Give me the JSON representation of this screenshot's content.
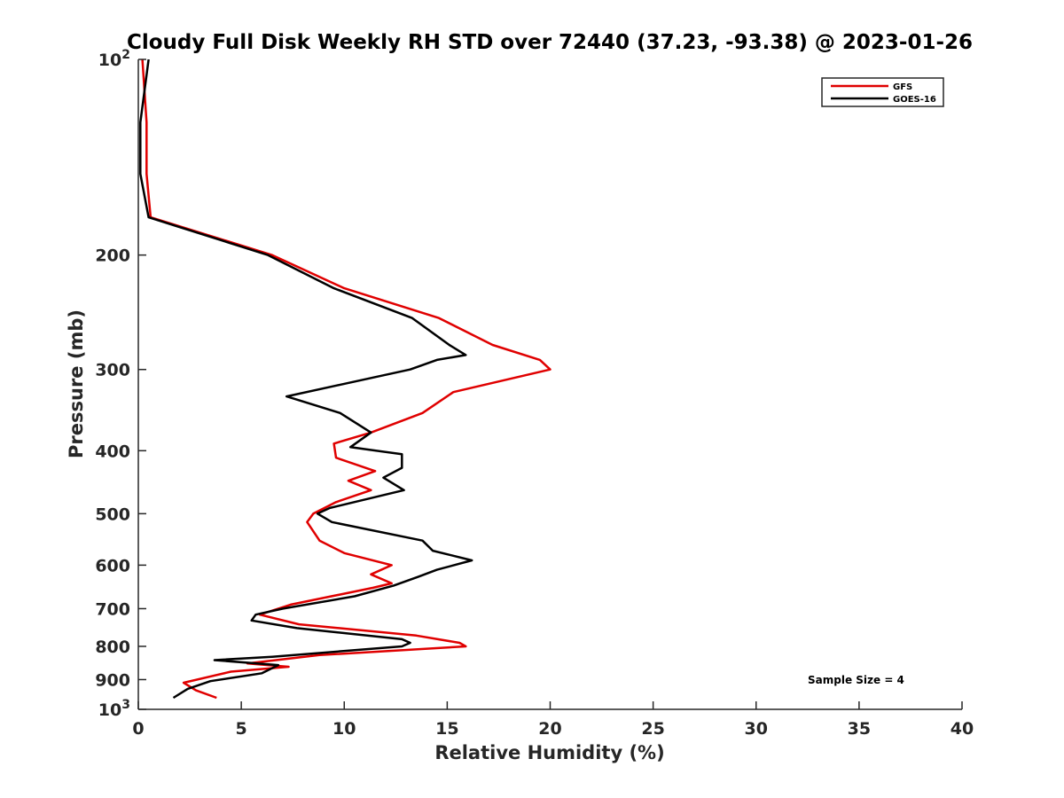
{
  "chart_data": {
    "type": "line",
    "title": "Cloudy Full Disk Weekly RH STD over 72440 (37.23, -93.38) @ 2023-01-26",
    "xlabel": "Relative Humidity (%)",
    "ylabel": "Pressure (mb)",
    "xlim": [
      0,
      40
    ],
    "ylim": [
      100,
      1000
    ],
    "y_scale": "log",
    "y_reversed": true,
    "grid": false,
    "legend_position": "top-right",
    "x_ticks": [
      0,
      5,
      10,
      15,
      20,
      25,
      30,
      35,
      40
    ],
    "x_tick_labels": [
      "0",
      "5",
      "10",
      "15",
      "20",
      "25",
      "30",
      "35",
      "40"
    ],
    "y_ticks": [
      100,
      200,
      300,
      400,
      500,
      600,
      700,
      800,
      900,
      1000
    ],
    "y_tick_labels": [
      {
        "base": "10",
        "sup": "2"
      },
      {
        "base": "200",
        "sup": ""
      },
      {
        "base": "300",
        "sup": ""
      },
      {
        "base": "400",
        "sup": ""
      },
      {
        "base": "500",
        "sup": ""
      },
      {
        "base": "600",
        "sup": ""
      },
      {
        "base": "700",
        "sup": ""
      },
      {
        "base": "800",
        "sup": ""
      },
      {
        "base": "900",
        "sup": ""
      },
      {
        "base": "10",
        "sup": "3"
      }
    ],
    "series": [
      {
        "name": "GFS",
        "color": "#e00000",
        "points": [
          [
            0.2,
            100
          ],
          [
            0.4,
            125
          ],
          [
            0.4,
            150
          ],
          [
            0.6,
            175
          ],
          [
            6.5,
            200
          ],
          [
            10,
            225
          ],
          [
            14.6,
            250
          ],
          [
            17.2,
            275
          ],
          [
            19.5,
            290
          ],
          [
            20.0,
            300
          ],
          [
            15.3,
            325
          ],
          [
            13.8,
            350
          ],
          [
            11.3,
            375
          ],
          [
            9.5,
            390
          ],
          [
            9.6,
            410
          ],
          [
            11.5,
            430
          ],
          [
            10.2,
            445
          ],
          [
            11.3,
            460
          ],
          [
            9.6,
            480
          ],
          [
            8.5,
            500
          ],
          [
            8.2,
            515
          ],
          [
            8.8,
            550
          ],
          [
            10.0,
            575
          ],
          [
            12.3,
            600
          ],
          [
            11.3,
            620
          ],
          [
            12.3,
            640
          ],
          [
            11.4,
            650
          ],
          [
            7.4,
            690
          ],
          [
            5.9,
            715
          ],
          [
            7.8,
            740
          ],
          [
            13.5,
            770
          ],
          [
            15.6,
            790
          ],
          [
            15.9,
            800
          ],
          [
            8.8,
            825
          ],
          [
            5.3,
            850
          ],
          [
            7.3,
            860
          ],
          [
            4.5,
            875
          ],
          [
            2.2,
            910
          ],
          [
            2.8,
            935
          ],
          [
            3.8,
            960
          ]
        ]
      },
      {
        "name": "GOES-16",
        "color": "#000000",
        "points": [
          [
            0.5,
            100
          ],
          [
            0.1,
            125
          ],
          [
            0.1,
            150
          ],
          [
            0.5,
            175
          ],
          [
            6.3,
            200
          ],
          [
            9.5,
            225
          ],
          [
            13.3,
            250
          ],
          [
            15.1,
            275
          ],
          [
            15.9,
            285
          ],
          [
            14.5,
            290
          ],
          [
            13.2,
            300
          ],
          [
            7.2,
            330
          ],
          [
            9.8,
            350
          ],
          [
            11.3,
            375
          ],
          [
            10.3,
            395
          ],
          [
            12.8,
            405
          ],
          [
            12.8,
            425
          ],
          [
            11.9,
            440
          ],
          [
            12.9,
            460
          ],
          [
            9.3,
            490
          ],
          [
            8.7,
            500
          ],
          [
            9.4,
            515
          ],
          [
            13.8,
            550
          ],
          [
            14.3,
            570
          ],
          [
            16.2,
            590
          ],
          [
            14.5,
            610
          ],
          [
            13.6,
            625
          ],
          [
            12.4,
            645
          ],
          [
            10.5,
            670
          ],
          [
            7.0,
            700
          ],
          [
            5.7,
            715
          ],
          [
            5.5,
            730
          ],
          [
            7.7,
            750
          ],
          [
            12.8,
            780
          ],
          [
            13.2,
            790
          ],
          [
            12.8,
            800
          ],
          [
            6.5,
            830
          ],
          [
            3.7,
            840
          ],
          [
            6.8,
            855
          ],
          [
            6.0,
            880
          ],
          [
            3.5,
            905
          ],
          [
            2.4,
            930
          ],
          [
            1.7,
            960
          ]
        ]
      }
    ],
    "annotations": [
      "Sample Size = 4"
    ]
  }
}
